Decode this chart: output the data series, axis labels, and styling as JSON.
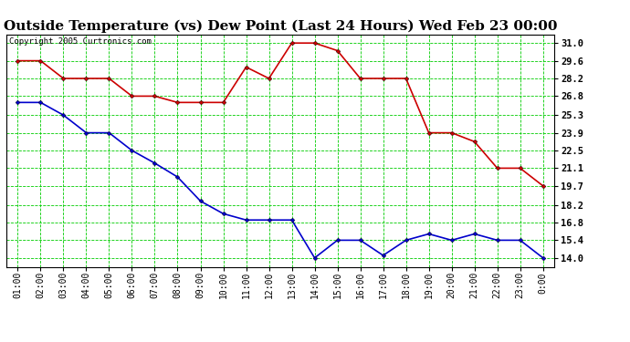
{
  "title": "Outside Temperature (vs) Dew Point (Last 24 Hours) Wed Feb 23 00:00",
  "copyright": "Copyright 2005 Curtronics.com",
  "x_labels": [
    "01:00",
    "02:00",
    "03:00",
    "04:00",
    "05:00",
    "06:00",
    "07:00",
    "08:00",
    "09:00",
    "10:00",
    "11:00",
    "12:00",
    "13:00",
    "14:00",
    "15:00",
    "16:00",
    "17:00",
    "18:00",
    "19:00",
    "20:00",
    "21:00",
    "22:00",
    "23:00",
    "0:00"
  ],
  "temp_values": [
    29.6,
    29.6,
    28.2,
    28.2,
    28.2,
    26.8,
    26.8,
    26.3,
    26.3,
    26.3,
    29.1,
    28.2,
    31.0,
    31.0,
    30.4,
    28.2,
    28.2,
    28.2,
    23.9,
    23.9,
    23.2,
    21.1,
    21.1,
    19.7
  ],
  "dew_values": [
    26.3,
    26.3,
    25.3,
    23.9,
    23.9,
    22.5,
    21.5,
    20.4,
    18.5,
    17.5,
    17.0,
    17.0,
    17.0,
    14.0,
    15.4,
    15.4,
    14.2,
    15.4,
    15.9,
    15.4,
    15.9,
    15.4,
    15.4,
    14.0
  ],
  "temp_color": "#cc0000",
  "dew_color": "#0000cc",
  "bg_color": "#ffffff",
  "plot_bg_color": "#ffffff",
  "grid_color": "#00cc00",
  "title_fontsize": 11,
  "y_ticks": [
    14.0,
    15.4,
    16.8,
    18.2,
    19.7,
    21.1,
    22.5,
    23.9,
    25.3,
    26.8,
    28.2,
    29.6,
    31.0
  ],
  "ylim": [
    13.3,
    31.7
  ],
  "marker": "D",
  "marker_size": 2.5,
  "linewidth": 1.2
}
